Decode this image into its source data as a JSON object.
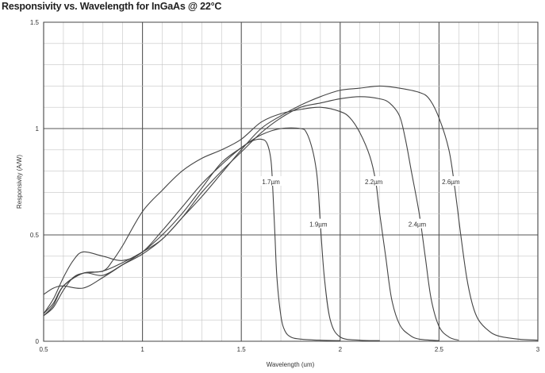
{
  "chart_data": {
    "type": "line",
    "title": "Responsivity vs. Wavelength for InGaAs @ 22°C",
    "xlabel": "Wavelength (um)",
    "ylabel": "Responsivity  (A/W)",
    "xlim": [
      0.5,
      3
    ],
    "ylim": [
      0,
      1.5
    ],
    "x_ticks": [
      0.5,
      1,
      1.5,
      2,
      2.5,
      3
    ],
    "x_tick_labels": [
      "0.5",
      "1",
      "1.5",
      "2",
      "2.5",
      "3"
    ],
    "y_ticks": [
      0,
      0.5,
      1,
      1.5
    ],
    "y_tick_labels": [
      "0",
      "0.5",
      "1",
      "1.5"
    ],
    "grid": true,
    "series": [
      {
        "name": "1.7µm",
        "label_at": [
          1.65,
          0.75
        ],
        "x": [
          0.5,
          0.55,
          0.6,
          0.7,
          0.8,
          0.9,
          1.0,
          1.1,
          1.2,
          1.3,
          1.4,
          1.5,
          1.55,
          1.6,
          1.63,
          1.65,
          1.66,
          1.67,
          1.68,
          1.7,
          1.72,
          1.75,
          1.8,
          1.9,
          2.0
        ],
        "y": [
          0.22,
          0.25,
          0.26,
          0.25,
          0.3,
          0.36,
          0.42,
          0.5,
          0.6,
          0.72,
          0.84,
          0.91,
          0.94,
          0.95,
          0.93,
          0.85,
          0.7,
          0.5,
          0.3,
          0.12,
          0.05,
          0.02,
          0.01,
          0.005,
          0.003
        ]
      },
      {
        "name": "1.9µm",
        "label_at": [
          1.89,
          0.55
        ],
        "x": [
          0.5,
          0.55,
          0.6,
          0.65,
          0.7,
          0.8,
          0.9,
          1.0,
          1.1,
          1.2,
          1.3,
          1.4,
          1.5,
          1.6,
          1.7,
          1.8,
          1.83,
          1.86,
          1.88,
          1.89,
          1.9,
          1.92,
          1.95,
          2.0,
          2.1,
          2.2
        ],
        "y": [
          0.13,
          0.2,
          0.3,
          0.38,
          0.42,
          0.4,
          0.38,
          0.42,
          0.52,
          0.63,
          0.74,
          0.83,
          0.91,
          0.97,
          1.0,
          1.0,
          0.98,
          0.9,
          0.8,
          0.7,
          0.55,
          0.3,
          0.1,
          0.02,
          0.005,
          0.003
        ]
      },
      {
        "name": "2.2µm",
        "label_at": [
          2.17,
          0.75
        ],
        "x": [
          0.5,
          0.55,
          0.6,
          0.7,
          0.8,
          0.85,
          0.9,
          1.0,
          1.1,
          1.2,
          1.3,
          1.4,
          1.5,
          1.6,
          1.7,
          1.8,
          1.9,
          2.0,
          2.05,
          2.1,
          2.15,
          2.18,
          2.2,
          2.23,
          2.26,
          2.3,
          2.35,
          2.4,
          2.5
        ],
        "y": [
          0.13,
          0.18,
          0.26,
          0.32,
          0.33,
          0.38,
          0.45,
          0.61,
          0.71,
          0.8,
          0.86,
          0.9,
          0.95,
          1.03,
          1.07,
          1.09,
          1.1,
          1.08,
          1.05,
          0.98,
          0.87,
          0.75,
          0.6,
          0.4,
          0.2,
          0.08,
          0.03,
          0.01,
          0.003
        ]
      },
      {
        "name": "2.4µm",
        "label_at": [
          2.39,
          0.55
        ],
        "x": [
          0.5,
          0.55,
          0.6,
          0.7,
          0.8,
          0.9,
          1.0,
          1.1,
          1.2,
          1.3,
          1.4,
          1.5,
          1.6,
          1.7,
          1.8,
          1.9,
          2.0,
          2.1,
          2.2,
          2.25,
          2.3,
          2.33,
          2.36,
          2.4,
          2.43,
          2.46,
          2.5,
          2.55,
          2.6
        ],
        "y": [
          0.12,
          0.17,
          0.26,
          0.32,
          0.31,
          0.36,
          0.41,
          0.48,
          0.58,
          0.7,
          0.8,
          0.89,
          0.98,
          1.05,
          1.1,
          1.12,
          1.14,
          1.15,
          1.14,
          1.12,
          1.06,
          0.95,
          0.8,
          0.6,
          0.4,
          0.2,
          0.07,
          0.02,
          0.005
        ]
      },
      {
        "name": "2.6µm",
        "label_at": [
          2.56,
          0.75
        ],
        "x": [
          0.5,
          0.55,
          0.6,
          0.65,
          0.7,
          0.8,
          0.9,
          1.0,
          1.1,
          1.2,
          1.3,
          1.4,
          1.5,
          1.6,
          1.7,
          1.8,
          1.9,
          2.0,
          2.1,
          2.2,
          2.3,
          2.4,
          2.45,
          2.5,
          2.55,
          2.58,
          2.61,
          2.64,
          2.67,
          2.7,
          2.75,
          2.8,
          2.9,
          3.0
        ],
        "y": [
          0.12,
          0.16,
          0.24,
          0.3,
          0.32,
          0.33,
          0.37,
          0.42,
          0.48,
          0.58,
          0.68,
          0.79,
          0.9,
          1.0,
          1.06,
          1.11,
          1.15,
          1.18,
          1.19,
          1.2,
          1.19,
          1.17,
          1.14,
          1.05,
          0.9,
          0.72,
          0.5,
          0.3,
          0.17,
          0.1,
          0.05,
          0.025,
          0.01,
          0.005
        ]
      }
    ],
    "line_color": "#444444"
  }
}
